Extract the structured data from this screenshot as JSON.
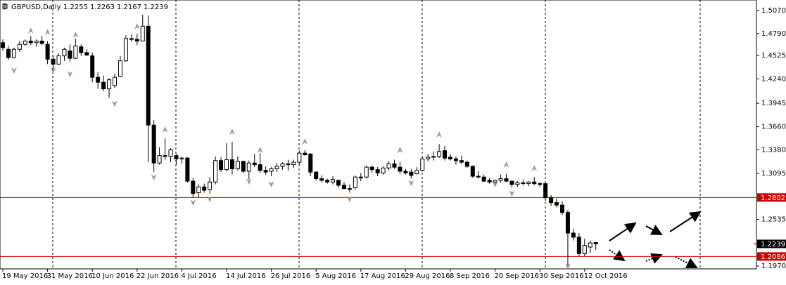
{
  "chart_data": {
    "type": "candlestick",
    "title": "GBPUSD,Daily",
    "header_ohlc": [
      1.2255,
      1.2263,
      1.2167,
      1.2239
    ],
    "ylim": [
      1.1936,
      1.5198
    ],
    "yticks": [
      {
        "value": 1.507,
        "label": "1.5070"
      },
      {
        "value": 1.479,
        "label": "1.4790"
      },
      1.4525,
      {
        "value": 1.424,
        "label": "1.4240"
      },
      1.3945,
      {
        "value": 1.366,
        "label": "1.3660"
      },
      {
        "value": 1.338,
        "label": "1.3380"
      },
      1.3095,
      1.2535,
      {
        "value": 1.197,
        "label": "1.1970"
      }
    ],
    "hlines": [
      1.2802,
      1.2086
    ],
    "hline_color": "#cc0000",
    "last_price": 1.2239,
    "bull_color": "#ffffff",
    "bear_color": "#000000",
    "fractal_color": "#9a9a9a",
    "categories": [
      "19 May 2016",
      null,
      null,
      null,
      null,
      null,
      null,
      null,
      "31 May 2016",
      null,
      null,
      null,
      null,
      null,
      null,
      null,
      "10 Jun 2016",
      null,
      null,
      null,
      null,
      null,
      null,
      null,
      "22 Jun 2016",
      null,
      null,
      null,
      null,
      null,
      null,
      null,
      "4 Jul 2016",
      null,
      null,
      null,
      null,
      null,
      null,
      null,
      "14 Jul 2016",
      null,
      null,
      null,
      null,
      null,
      null,
      null,
      "26 Jul 2016",
      null,
      null,
      null,
      null,
      null,
      null,
      null,
      "5 Aug 2016",
      null,
      null,
      null,
      null,
      null,
      null,
      null,
      "17 Aug 2016",
      null,
      null,
      null,
      null,
      null,
      null,
      null,
      "29 Aug 2016",
      null,
      null,
      null,
      null,
      null,
      null,
      null,
      "8 Sep 2016",
      null,
      null,
      null,
      null,
      null,
      null,
      null,
      "20 Sep 2016",
      null,
      null,
      null,
      null,
      null,
      null,
      null,
      "30 Sep 2016",
      null,
      null,
      null,
      null,
      null,
      null,
      null,
      "12 Oct 2016",
      null,
      null
    ],
    "ohlc": [
      [
        1.468,
        1.472,
        1.458,
        1.462
      ],
      [
        1.46,
        1.464,
        1.447,
        1.45
      ],
      [
        1.45,
        1.462,
        1.449,
        1.46
      ],
      [
        1.46,
        1.47,
        1.457,
        1.466
      ],
      [
        1.466,
        1.472,
        1.464,
        1.47
      ],
      [
        1.47,
        1.476,
        1.465,
        1.468
      ],
      [
        1.468,
        1.472,
        1.463,
        1.47
      ],
      [
        1.47,
        1.476,
        1.465,
        1.467
      ],
      [
        1.466,
        1.47,
        1.442,
        1.448
      ],
      [
        1.448,
        1.452,
        1.436,
        1.442
      ],
      [
        1.442,
        1.455,
        1.441,
        1.452
      ],
      [
        1.452,
        1.462,
        1.446,
        1.46
      ],
      [
        1.458,
        1.466,
        1.445,
        1.449
      ],
      [
        1.449,
        1.473,
        1.448,
        1.464
      ],
      [
        1.463,
        1.466,
        1.452,
        1.456
      ],
      [
        1.456,
        1.46,
        1.452,
        1.453
      ],
      [
        1.452,
        1.456,
        1.42,
        1.426
      ],
      [
        1.426,
        1.432,
        1.412,
        1.42
      ],
      [
        1.42,
        1.428,
        1.409,
        1.412
      ],
      [
        1.412,
        1.425,
        1.401,
        1.423
      ],
      [
        1.416,
        1.43,
        1.413,
        1.426
      ],
      [
        1.427,
        1.452,
        1.426,
        1.446
      ],
      [
        1.446,
        1.477,
        1.445,
        1.473
      ],
      [
        1.473,
        1.478,
        1.469,
        1.472
      ],
      [
        1.472,
        1.479,
        1.465,
        1.47
      ],
      [
        1.47,
        1.502,
        1.47,
        1.488
      ],
      [
        1.488,
        1.501,
        1.323,
        1.368
      ],
      [
        1.368,
        1.374,
        1.311,
        1.322
      ],
      [
        1.322,
        1.341,
        1.32,
        1.331
      ],
      [
        1.331,
        1.352,
        1.326,
        1.33
      ],
      [
        1.33,
        1.34,
        1.323,
        1.338
      ],
      [
        1.331,
        1.333,
        1.32,
        1.327
      ],
      [
        1.327,
        1.33,
        1.321,
        1.328
      ],
      [
        1.328,
        1.329,
        1.298,
        1.3
      ],
      [
        1.3,
        1.304,
        1.28,
        1.285
      ],
      [
        1.286,
        1.296,
        1.28,
        1.293
      ],
      [
        1.293,
        1.297,
        1.286,
        1.289
      ],
      [
        1.29,
        1.305,
        1.285,
        1.299
      ],
      [
        1.299,
        1.33,
        1.296,
        1.325
      ],
      [
        1.325,
        1.329,
        1.311,
        1.314
      ],
      [
        1.314,
        1.346,
        1.312,
        1.326
      ],
      [
        1.326,
        1.348,
        1.308,
        1.315
      ],
      [
        1.315,
        1.33,
        1.313,
        1.324
      ],
      [
        1.324,
        1.325,
        1.31,
        1.312
      ],
      [
        1.312,
        1.325,
        1.302,
        1.322
      ],
      [
        1.322,
        1.333,
        1.317,
        1.32
      ],
      [
        1.32,
        1.334,
        1.31,
        1.313
      ],
      [
        1.313,
        1.318,
        1.308,
        1.311
      ],
      [
        1.312,
        1.317,
        1.306,
        1.315
      ],
      [
        1.315,
        1.322,
        1.311,
        1.318
      ],
      [
        1.318,
        1.323,
        1.314,
        1.321
      ],
      [
        1.321,
        1.326,
        1.313,
        1.32
      ],
      [
        1.32,
        1.326,
        1.316,
        1.323
      ],
      [
        1.323,
        1.337,
        1.32,
        1.334
      ],
      [
        1.334,
        1.338,
        1.331,
        1.332
      ],
      [
        1.333,
        1.334,
        1.306,
        1.311
      ],
      [
        1.311,
        1.312,
        1.301,
        1.303
      ],
      [
        1.303,
        1.307,
        1.298,
        1.301
      ],
      [
        1.301,
        1.303,
        1.297,
        1.299
      ],
      [
        1.299,
        1.306,
        1.296,
        1.302
      ],
      [
        1.301,
        1.302,
        1.292,
        1.295
      ],
      [
        1.295,
        1.299,
        1.29,
        1.291
      ],
      [
        1.291,
        1.296,
        1.286,
        1.29
      ],
      [
        1.292,
        1.307,
        1.29,
        1.305
      ],
      [
        1.305,
        1.31,
        1.3,
        1.304
      ],
      [
        1.305,
        1.319,
        1.303,
        1.317
      ],
      [
        1.317,
        1.319,
        1.31,
        1.314
      ],
      [
        1.314,
        1.317,
        1.306,
        1.31
      ],
      [
        1.31,
        1.318,
        1.308,
        1.316
      ],
      [
        1.316,
        1.324,
        1.313,
        1.321
      ],
      [
        1.321,
        1.326,
        1.315,
        1.317
      ],
      [
        1.317,
        1.323,
        1.309,
        1.312
      ],
      [
        1.312,
        1.315,
        1.308,
        1.31
      ],
      [
        1.311,
        1.315,
        1.303,
        1.307
      ],
      [
        1.309,
        1.317,
        1.308,
        1.313
      ],
      [
        1.313,
        1.33,
        1.312,
        1.327
      ],
      [
        1.327,
        1.333,
        1.324,
        1.329
      ],
      [
        1.329,
        1.336,
        1.325,
        1.33
      ],
      [
        1.33,
        1.345,
        1.328,
        1.336
      ],
      [
        1.337,
        1.343,
        1.325,
        1.328
      ],
      [
        1.329,
        1.333,
        1.325,
        1.327
      ],
      [
        1.327,
        1.33,
        1.32,
        1.325
      ],
      [
        1.325,
        1.331,
        1.321,
        1.323
      ],
      [
        1.323,
        1.325,
        1.316,
        1.318
      ],
      [
        1.318,
        1.319,
        1.304,
        1.306
      ],
      [
        1.306,
        1.312,
        1.303,
        1.305
      ],
      [
        1.305,
        1.308,
        1.299,
        1.3
      ],
      [
        1.301,
        1.304,
        1.297,
        1.299
      ],
      [
        1.299,
        1.302,
        1.295,
        1.301
      ],
      [
        1.301,
        1.308,
        1.298,
        1.303
      ],
      [
        1.303,
        1.309,
        1.299,
        1.3
      ],
      [
        1.3,
        1.301,
        1.292,
        1.296
      ],
      [
        1.296,
        1.3,
        1.293,
        1.298
      ],
      [
        1.298,
        1.302,
        1.295,
        1.297
      ],
      [
        1.297,
        1.3,
        1.294,
        1.299
      ],
      [
        1.299,
        1.305,
        1.295,
        1.297
      ],
      [
        1.297,
        1.299,
        1.293,
        1.296
      ],
      [
        1.297,
        1.297,
        1.276,
        1.28
      ],
      [
        1.28,
        1.283,
        1.27,
        1.274
      ],
      [
        1.274,
        1.279,
        1.268,
        1.271
      ],
      [
        1.271,
        1.276,
        1.259,
        1.262
      ],
      [
        1.262,
        1.265,
        1.197,
        1.237
      ],
      [
        1.237,
        1.242,
        1.228,
        1.232
      ],
      [
        1.232,
        1.237,
        1.209,
        1.212
      ],
      [
        1.212,
        1.23,
        1.209,
        1.222
      ],
      [
        1.22,
        1.228,
        1.213,
        1.225
      ],
      [
        1.2255,
        1.2263,
        1.2167,
        1.2239
      ]
    ],
    "fractals_up": [
      null,
      null,
      null,
      null,
      null,
      1.4823,
      null,
      null,
      1.4806,
      null,
      null,
      null,
      null,
      1.4772,
      null,
      null,
      null,
      null,
      null,
      null,
      null,
      null,
      null,
      null,
      1.4874,
      null,
      null,
      null,
      null,
      1.3622,
      null,
      null,
      null,
      null,
      null,
      null,
      null,
      null,
      null,
      null,
      null,
      1.3596,
      null,
      null,
      null,
      null,
      1.3375,
      null,
      null,
      null,
      null,
      null,
      null,
      null,
      1.3477,
      null,
      null,
      null,
      null,
      null,
      null,
      null,
      null,
      null,
      null,
      null,
      null,
      null,
      null,
      null,
      null,
      1.3375,
      null,
      null,
      null,
      null,
      null,
      null,
      1.3562,
      null,
      null,
      null,
      null,
      null,
      null,
      null,
      null,
      null,
      null,
      null,
      1.3196,
      null,
      null,
      null,
      null,
      1.3153,
      null,
      null,
      null,
      null,
      null,
      null,
      null,
      null,
      null,
      null,
      null
    ],
    "fractals_down": [
      null,
      null,
      1.4346,
      null,
      null,
      null,
      null,
      null,
      null,
      1.4346,
      null,
      null,
      1.4303,
      null,
      null,
      null,
      null,
      null,
      null,
      null,
      1.3945,
      null,
      null,
      null,
      null,
      null,
      null,
      1.3051,
      null,
      null,
      null,
      null,
      null,
      null,
      1.2744,
      null,
      null,
      1.2787,
      null,
      null,
      null,
      null,
      null,
      null,
      1.3,
      null,
      null,
      null,
      1.2966,
      null,
      null,
      null,
      null,
      null,
      null,
      null,
      null,
      null,
      null,
      null,
      null,
      null,
      1.2787,
      null,
      null,
      null,
      null,
      null,
      null,
      null,
      null,
      null,
      null,
      1.2983,
      null,
      null,
      null,
      null,
      null,
      null,
      null,
      null,
      null,
      null,
      null,
      null,
      null,
      null,
      1.2966,
      null,
      null,
      1.2855,
      null,
      null,
      null,
      null,
      null,
      null,
      null,
      null,
      null,
      1.197,
      null,
      null,
      null,
      null,
      null
    ]
  }
}
